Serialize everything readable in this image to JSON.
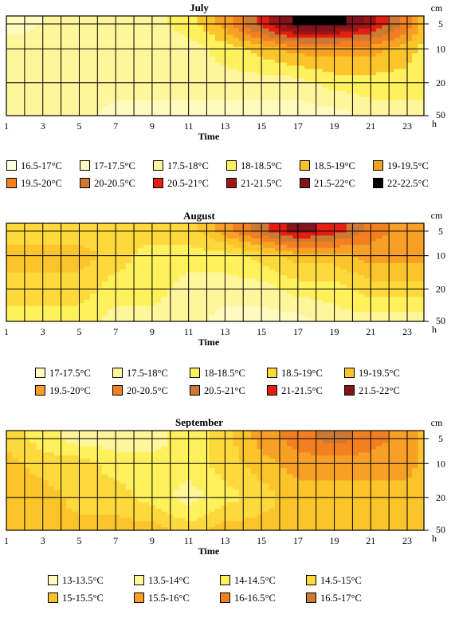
{
  "chart_data": [
    {
      "type": "heatmap",
      "title": "July",
      "xlabel": "Time",
      "x_unit": "h",
      "y_unit": "cm",
      "x_ticks": [
        "1",
        "3",
        "5",
        "7",
        "9",
        "11",
        "13",
        "15",
        "17",
        "19",
        "21",
        "23"
      ],
      "y_ticks": [
        "5",
        "10",
        "20",
        "50"
      ],
      "x": [
        1,
        3,
        5,
        7,
        9,
        11,
        13,
        15,
        17,
        19,
        21,
        23,
        24
      ],
      "y": [
        5,
        10,
        20,
        50
      ],
      "z": [
        [
          17.25,
          17.5,
          17.75,
          17.75,
          17.75,
          18.25,
          19.25,
          20.75,
          22.25,
          22.25,
          21.25,
          19.75,
          18.75
        ],
        [
          17.75,
          17.75,
          17.75,
          17.75,
          17.75,
          17.75,
          18.25,
          18.75,
          19.25,
          19.25,
          19.25,
          18.75,
          18.25
        ],
        [
          17.75,
          17.75,
          17.75,
          17.75,
          17.75,
          17.75,
          17.75,
          17.75,
          17.75,
          18.25,
          18.25,
          18.25,
          18.25
        ],
        [
          17.75,
          17.75,
          17.75,
          17.25,
          17.25,
          17.25,
          17.25,
          17.25,
          17.25,
          17.25,
          17.75,
          17.75,
          17.75
        ]
      ],
      "legend": [
        {
          "label": "16.5-17°C",
          "color": "#ffffde"
        },
        {
          "label": "17-17.5°C",
          "color": "#fffbbf"
        },
        {
          "label": "17.5-18°C",
          "color": "#fff59a"
        },
        {
          "label": "18-18.5°C",
          "color": "#fff15c"
        },
        {
          "label": "18.5-19°C",
          "color": "#fbc42a"
        },
        {
          "label": "19-19.5°C",
          "color": "#f8a025"
        },
        {
          "label": "19.5-20°C",
          "color": "#f28021"
        },
        {
          "label": "20-20.5°C",
          "color": "#cd7833"
        },
        {
          "label": "20.5-21°C",
          "color": "#e41f11"
        },
        {
          "label": "21-21.5°C",
          "color": "#a11515"
        },
        {
          "label": "21.5-22°C",
          "color": "#82131c"
        },
        {
          "label": "22-22.5°C",
          "color": "#000000"
        }
      ]
    },
    {
      "type": "heatmap",
      "title": "August",
      "xlabel": "Time",
      "x_unit": "h",
      "y_unit": "cm",
      "x_ticks": [
        "1",
        "3",
        "5",
        "7",
        "9",
        "11",
        "13",
        "15",
        "17",
        "19",
        "21",
        "23"
      ],
      "y_ticks": [
        "5",
        "10",
        "20",
        "50"
      ],
      "x": [
        1,
        3,
        5,
        7,
        9,
        11,
        13,
        15,
        17,
        19,
        21,
        23,
        24
      ],
      "y": [
        5,
        10,
        20,
        50
      ],
      "z": [
        [
          18.75,
          18.75,
          18.75,
          18.75,
          18.75,
          18.75,
          19.75,
          20.75,
          21.75,
          21.25,
          20.25,
          19.75,
          19.75
        ],
        [
          19.25,
          19.25,
          19.25,
          18.75,
          18.25,
          18.25,
          18.25,
          18.75,
          19.25,
          19.25,
          19.75,
          19.75,
          19.75
        ],
        [
          18.75,
          18.75,
          18.75,
          18.25,
          18.25,
          17.75,
          17.75,
          17.75,
          18.25,
          18.25,
          18.75,
          18.75,
          18.75
        ],
        [
          18.25,
          18.25,
          18.25,
          17.75,
          17.75,
          17.75,
          17.25,
          17.25,
          17.25,
          17.75,
          17.75,
          17.75,
          17.75
        ]
      ],
      "legend": [
        {
          "label": "17-17.5°C",
          "color": "#fffbbf"
        },
        {
          "label": "17.5-18°C",
          "color": "#fff59a"
        },
        {
          "label": "18-18.5°C",
          "color": "#fff15c"
        },
        {
          "label": "18.5-19°C",
          "color": "#fdd93c"
        },
        {
          "label": "19-19.5°C",
          "color": "#fbc42a"
        },
        {
          "label": "19.5-20°C",
          "color": "#f8a025"
        },
        {
          "label": "20-20.5°C",
          "color": "#f28021"
        },
        {
          "label": "20.5-21°C",
          "color": "#cd7833"
        },
        {
          "label": "21-21.5°C",
          "color": "#e41f11"
        },
        {
          "label": "21.5-22°C",
          "color": "#82131c"
        }
      ]
    },
    {
      "type": "heatmap",
      "title": "September",
      "xlabel": "Time",
      "x_unit": "h",
      "y_unit": "cm",
      "x_ticks": [
        "1",
        "3",
        "5",
        "7",
        "9",
        "11",
        "13",
        "15",
        "17",
        "19",
        "21",
        "23"
      ],
      "y_ticks": [
        "5",
        "10",
        "20",
        "50"
      ],
      "x": [
        1,
        3,
        5,
        7,
        9,
        11,
        13,
        15,
        17,
        19,
        21,
        23,
        24
      ],
      "y": [
        5,
        10,
        20,
        50
      ],
      "z": [
        [
          14.75,
          14.25,
          13.75,
          13.75,
          13.75,
          14.25,
          14.75,
          15.75,
          16.25,
          16.75,
          16.25,
          15.75,
          15.25
        ],
        [
          15.25,
          14.75,
          14.75,
          14.25,
          14.25,
          14.25,
          14.75,
          15.25,
          15.75,
          15.75,
          15.75,
          15.75,
          15.25
        ],
        [
          15.25,
          15.25,
          14.75,
          14.75,
          14.25,
          13.75,
          14.25,
          14.75,
          15.25,
          15.25,
          15.25,
          15.25,
          15.25
        ],
        [
          15.25,
          15.25,
          15.25,
          15.25,
          15.25,
          14.75,
          15.25,
          15.25,
          15.25,
          15.25,
          15.25,
          15.25,
          15.25
        ]
      ],
      "legend": [
        {
          "label": "13-13.5°C",
          "color": "#fffbbf"
        },
        {
          "label": "13.5-14°C",
          "color": "#fff59a"
        },
        {
          "label": "14-14.5°C",
          "color": "#fff15c"
        },
        {
          "label": "14.5-15°C",
          "color": "#fdd93c"
        },
        {
          "label": "15-15.5°C",
          "color": "#fbc42a"
        },
        {
          "label": "15.5-16°C",
          "color": "#f8a025"
        },
        {
          "label": "16-16.5°C",
          "color": "#f28021"
        },
        {
          "label": "16.5-17°C",
          "color": "#cd7833"
        }
      ]
    }
  ]
}
